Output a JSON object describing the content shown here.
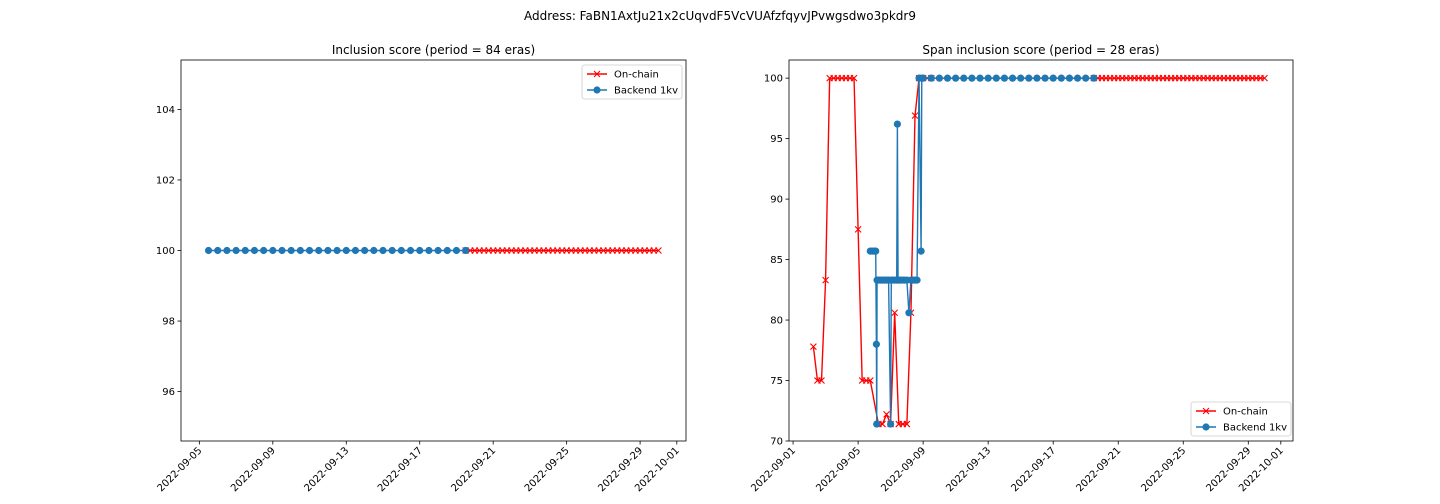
{
  "suptitle": "Address: FaBN1AxtJu21x2cUqvdF5VcVUAfzfqyvJPvwgsdwo3pkdr9",
  "colors": {
    "onchain": "#ff0000",
    "backend": "#1f77b4"
  },
  "chart_data": [
    {
      "type": "line",
      "title": "Inclusion score (period = 84 eras)",
      "xlabel": "",
      "ylabel": "",
      "xlim": [
        "2022-09-04T00:00",
        "2022-10-01T12:00"
      ],
      "ylim": [
        94.6,
        105.4
      ],
      "x_ticks": [
        "2022-09-05",
        "2022-09-09",
        "2022-09-13",
        "2022-09-17",
        "2022-09-21",
        "2022-09-25",
        "2022-09-29",
        "2022-10-01"
      ],
      "y_ticks": [
        96,
        98,
        100,
        102,
        104
      ],
      "legend_position": "top-right",
      "grid": false,
      "series": [
        {
          "name": "On-chain",
          "marker": "x",
          "color": "#ff0000",
          "points": [
            [
              "2022-09-19T12:00",
              100
            ],
            [
              "2022-09-19T18:00",
              100
            ],
            [
              "2022-09-20T00:00",
              100
            ],
            [
              "2022-09-20T06:00",
              100
            ],
            [
              "2022-09-20T12:00",
              100
            ],
            [
              "2022-09-20T18:00",
              100
            ],
            [
              "2022-09-21T00:00",
              100
            ],
            [
              "2022-09-21T06:00",
              100
            ],
            [
              "2022-09-21T12:00",
              100
            ],
            [
              "2022-09-21T18:00",
              100
            ],
            [
              "2022-09-22T00:00",
              100
            ],
            [
              "2022-09-22T06:00",
              100
            ],
            [
              "2022-09-22T12:00",
              100
            ],
            [
              "2022-09-22T18:00",
              100
            ],
            [
              "2022-09-23T00:00",
              100
            ],
            [
              "2022-09-23T06:00",
              100
            ],
            [
              "2022-09-23T12:00",
              100
            ],
            [
              "2022-09-23T18:00",
              100
            ],
            [
              "2022-09-24T00:00",
              100
            ],
            [
              "2022-09-24T06:00",
              100
            ],
            [
              "2022-09-24T12:00",
              100
            ],
            [
              "2022-09-24T18:00",
              100
            ],
            [
              "2022-09-25T00:00",
              100
            ],
            [
              "2022-09-25T06:00",
              100
            ],
            [
              "2022-09-25T12:00",
              100
            ],
            [
              "2022-09-25T18:00",
              100
            ],
            [
              "2022-09-26T00:00",
              100
            ],
            [
              "2022-09-26T06:00",
              100
            ],
            [
              "2022-09-26T12:00",
              100
            ],
            [
              "2022-09-26T18:00",
              100
            ],
            [
              "2022-09-27T00:00",
              100
            ],
            [
              "2022-09-27T06:00",
              100
            ],
            [
              "2022-09-27T12:00",
              100
            ],
            [
              "2022-09-27T18:00",
              100
            ],
            [
              "2022-09-28T00:00",
              100
            ],
            [
              "2022-09-28T06:00",
              100
            ],
            [
              "2022-09-28T12:00",
              100
            ],
            [
              "2022-09-28T18:00",
              100
            ],
            [
              "2022-09-29T00:00",
              100
            ],
            [
              "2022-09-29T06:00",
              100
            ],
            [
              "2022-09-29T12:00",
              100
            ],
            [
              "2022-09-29T18:00",
              100
            ],
            [
              "2022-09-30T00:00",
              100
            ]
          ]
        },
        {
          "name": "Backend 1kv",
          "marker": "o",
          "color": "#1f77b4",
          "points": [
            [
              "2022-09-05T12:00",
              100
            ],
            [
              "2022-09-06T00:00",
              100
            ],
            [
              "2022-09-06T12:00",
              100
            ],
            [
              "2022-09-07T00:00",
              100
            ],
            [
              "2022-09-07T12:00",
              100
            ],
            [
              "2022-09-08T00:00",
              100
            ],
            [
              "2022-09-08T12:00",
              100
            ],
            [
              "2022-09-09T00:00",
              100
            ],
            [
              "2022-09-09T12:00",
              100
            ],
            [
              "2022-09-10T00:00",
              100
            ],
            [
              "2022-09-10T12:00",
              100
            ],
            [
              "2022-09-11T00:00",
              100
            ],
            [
              "2022-09-11T12:00",
              100
            ],
            [
              "2022-09-12T00:00",
              100
            ],
            [
              "2022-09-12T12:00",
              100
            ],
            [
              "2022-09-13T00:00",
              100
            ],
            [
              "2022-09-13T12:00",
              100
            ],
            [
              "2022-09-14T00:00",
              100
            ],
            [
              "2022-09-14T12:00",
              100
            ],
            [
              "2022-09-15T00:00",
              100
            ],
            [
              "2022-09-15T12:00",
              100
            ],
            [
              "2022-09-16T00:00",
              100
            ],
            [
              "2022-09-16T12:00",
              100
            ],
            [
              "2022-09-17T00:00",
              100
            ],
            [
              "2022-09-17T12:00",
              100
            ],
            [
              "2022-09-18T00:00",
              100
            ],
            [
              "2022-09-18T12:00",
              100
            ],
            [
              "2022-09-19T00:00",
              100
            ],
            [
              "2022-09-19T12:00",
              100
            ]
          ]
        }
      ]
    },
    {
      "type": "line",
      "title": "Span inclusion score (period = 28 eras)",
      "xlabel": "",
      "ylabel": "",
      "xlim": [
        "2022-08-31T18:00",
        "2022-10-01T18:00"
      ],
      "ylim": [
        70,
        101.5
      ],
      "x_ticks": [
        "2022-09-01",
        "2022-09-05",
        "2022-09-09",
        "2022-09-13",
        "2022-09-17",
        "2022-09-21",
        "2022-09-25",
        "2022-09-29",
        "2022-10-01"
      ],
      "y_ticks": [
        70,
        75,
        80,
        85,
        90,
        95,
        100
      ],
      "legend_position": "lower-right",
      "grid": false,
      "series": [
        {
          "name": "On-chain",
          "marker": "x",
          "color": "#ff0000",
          "points": [
            [
              "2022-09-02T06:00",
              77.8
            ],
            [
              "2022-09-02T12:00",
              75.0
            ],
            [
              "2022-09-02T18:00",
              75.0
            ],
            [
              "2022-09-03T00:00",
              83.3
            ],
            [
              "2022-09-03T06:00",
              100
            ],
            [
              "2022-09-03T12:00",
              100
            ],
            [
              "2022-09-03T18:00",
              100
            ],
            [
              "2022-09-04T00:00",
              100
            ],
            [
              "2022-09-04T06:00",
              100
            ],
            [
              "2022-09-04T12:00",
              100
            ],
            [
              "2022-09-04T18:00",
              100
            ],
            [
              "2022-09-05T00:00",
              87.5
            ],
            [
              "2022-09-05T06:00",
              75.0
            ],
            [
              "2022-09-05T12:00",
              75.0
            ],
            [
              "2022-09-05T18:00",
              75.0
            ],
            [
              "2022-09-06T06:00",
              71.4
            ],
            [
              "2022-09-06T12:00",
              71.4
            ],
            [
              "2022-09-06T18:00",
              72.2
            ],
            [
              "2022-09-07T00:00",
              71.4
            ],
            [
              "2022-09-07T06:00",
              80.6
            ],
            [
              "2022-09-07T12:00",
              71.4
            ],
            [
              "2022-09-07T18:00",
              71.4
            ],
            [
              "2022-09-08T00:00",
              71.4
            ],
            [
              "2022-09-08T06:00",
              80.6
            ],
            [
              "2022-09-08T12:00",
              96.9
            ],
            [
              "2022-09-08T18:00",
              100
            ],
            [
              "2022-09-09T00:00",
              100
            ],
            [
              "2022-09-09T06:00",
              100
            ],
            [
              "2022-09-09T12:00",
              100
            ],
            [
              "2022-09-19T12:00",
              100
            ],
            [
              "2022-09-19T18:00",
              100
            ],
            [
              "2022-09-20T00:00",
              100
            ],
            [
              "2022-09-20T06:00",
              100
            ],
            [
              "2022-09-20T12:00",
              100
            ],
            [
              "2022-09-20T18:00",
              100
            ],
            [
              "2022-09-21T00:00",
              100
            ],
            [
              "2022-09-21T06:00",
              100
            ],
            [
              "2022-09-21T12:00",
              100
            ],
            [
              "2022-09-21T18:00",
              100
            ],
            [
              "2022-09-22T00:00",
              100
            ],
            [
              "2022-09-22T06:00",
              100
            ],
            [
              "2022-09-22T12:00",
              100
            ],
            [
              "2022-09-22T18:00",
              100
            ],
            [
              "2022-09-23T00:00",
              100
            ],
            [
              "2022-09-23T06:00",
              100
            ],
            [
              "2022-09-23T12:00",
              100
            ],
            [
              "2022-09-23T18:00",
              100
            ],
            [
              "2022-09-24T00:00",
              100
            ],
            [
              "2022-09-24T06:00",
              100
            ],
            [
              "2022-09-24T12:00",
              100
            ],
            [
              "2022-09-24T18:00",
              100
            ],
            [
              "2022-09-25T00:00",
              100
            ],
            [
              "2022-09-25T06:00",
              100
            ],
            [
              "2022-09-25T12:00",
              100
            ],
            [
              "2022-09-25T18:00",
              100
            ],
            [
              "2022-09-26T00:00",
              100
            ],
            [
              "2022-09-26T06:00",
              100
            ],
            [
              "2022-09-26T12:00",
              100
            ],
            [
              "2022-09-26T18:00",
              100
            ],
            [
              "2022-09-27T00:00",
              100
            ],
            [
              "2022-09-27T06:00",
              100
            ],
            [
              "2022-09-27T12:00",
              100
            ],
            [
              "2022-09-27T18:00",
              100
            ],
            [
              "2022-09-28T00:00",
              100
            ],
            [
              "2022-09-28T06:00",
              100
            ],
            [
              "2022-09-28T12:00",
              100
            ],
            [
              "2022-09-28T18:00",
              100
            ],
            [
              "2022-09-29T00:00",
              100
            ],
            [
              "2022-09-29T06:00",
              100
            ],
            [
              "2022-09-29T12:00",
              100
            ],
            [
              "2022-09-29T18:00",
              100
            ],
            [
              "2022-09-30T00:00",
              100
            ]
          ]
        },
        {
          "name": "Backend 1kv",
          "marker": "o",
          "color": "#1f77b4",
          "points": [
            [
              "2022-09-05T18:00",
              85.7
            ],
            [
              "2022-09-05T21:00",
              85.7
            ],
            [
              "2022-09-06T00:00",
              85.7
            ],
            [
              "2022-09-06T02:00",
              85.7
            ],
            [
              "2022-09-06T03:00",
              78.0
            ],
            [
              "2022-09-06T03:30",
              71.4
            ],
            [
              "2022-09-06T04:00",
              83.3
            ],
            [
              "2022-09-06T06:00",
              83.3
            ],
            [
              "2022-09-06T09:00",
              83.3
            ],
            [
              "2022-09-06T12:00",
              83.3
            ],
            [
              "2022-09-06T15:00",
              83.3
            ],
            [
              "2022-09-06T18:00",
              83.3
            ],
            [
              "2022-09-06T21:00",
              83.3
            ],
            [
              "2022-09-07T00:00",
              71.4
            ],
            [
              "2022-09-07T01:00",
              83.3
            ],
            [
              "2022-09-07T03:00",
              83.3
            ],
            [
              "2022-09-07T06:00",
              83.3
            ],
            [
              "2022-09-07T09:00",
              83.3
            ],
            [
              "2022-09-07T10:00",
              96.2
            ],
            [
              "2022-09-07T11:00",
              83.3
            ],
            [
              "2022-09-07T14:00",
              83.3
            ],
            [
              "2022-09-07T17:00",
              83.3
            ],
            [
              "2022-09-07T20:00",
              83.3
            ],
            [
              "2022-09-08T00:00",
              83.3
            ],
            [
              "2022-09-08T03:00",
              80.6
            ],
            [
              "2022-09-08T06:00",
              83.3
            ],
            [
              "2022-09-08T09:00",
              83.3
            ],
            [
              "2022-09-08T12:00",
              83.3
            ],
            [
              "2022-09-08T15:00",
              83.3
            ],
            [
              "2022-09-08T18:00",
              100
            ],
            [
              "2022-09-08T21:00",
              85.7
            ],
            [
              "2022-09-08T22:00",
              100
            ],
            [
              "2022-09-09T00:00",
              100
            ],
            [
              "2022-09-09T12:00",
              100
            ],
            [
              "2022-09-10T00:00",
              100
            ],
            [
              "2022-09-10T12:00",
              100
            ],
            [
              "2022-09-11T00:00",
              100
            ],
            [
              "2022-09-11T12:00",
              100
            ],
            [
              "2022-09-12T00:00",
              100
            ],
            [
              "2022-09-12T12:00",
              100
            ],
            [
              "2022-09-13T00:00",
              100
            ],
            [
              "2022-09-13T12:00",
              100
            ],
            [
              "2022-09-14T00:00",
              100
            ],
            [
              "2022-09-14T12:00",
              100
            ],
            [
              "2022-09-15T00:00",
              100
            ],
            [
              "2022-09-15T12:00",
              100
            ],
            [
              "2022-09-16T00:00",
              100
            ],
            [
              "2022-09-16T12:00",
              100
            ],
            [
              "2022-09-17T00:00",
              100
            ],
            [
              "2022-09-17T12:00",
              100
            ],
            [
              "2022-09-18T00:00",
              100
            ],
            [
              "2022-09-18T12:00",
              100
            ],
            [
              "2022-09-19T00:00",
              100
            ],
            [
              "2022-09-19T12:00",
              100
            ]
          ]
        }
      ]
    }
  ]
}
